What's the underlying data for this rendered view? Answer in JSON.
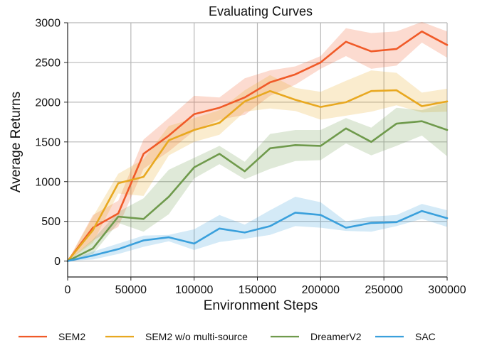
{
  "chart_data": {
    "type": "line",
    "title": "Evaluating Curves",
    "xlabel": "Environment Steps",
    "ylabel": "Average Returns",
    "xlim": [
      0,
      300000
    ],
    "ylim": [
      -200,
      3000
    ],
    "xticks": [
      0,
      50000,
      100000,
      150000,
      200000,
      250000,
      300000
    ],
    "yticks": [
      0,
      500,
      1000,
      1500,
      2000,
      2500,
      3000
    ],
    "grid": true,
    "legend_position": "bottom",
    "series": [
      {
        "name": "SEM2",
        "color": "#f05a28",
        "x": [
          0,
          20000,
          40000,
          60000,
          80000,
          100000,
          120000,
          140000,
          160000,
          180000,
          200000,
          220000,
          240000,
          260000,
          280000,
          300000
        ],
        "y": [
          0,
          420,
          600,
          1350,
          1580,
          1850,
          1930,
          2060,
          2250,
          2350,
          2500,
          2760,
          2640,
          2670,
          2890,
          2720
        ],
        "upper": [
          0,
          580,
          760,
          1530,
          1800,
          2080,
          2060,
          2300,
          2400,
          2450,
          2580,
          2930,
          2870,
          2890,
          3010,
          2890
        ],
        "lower": [
          0,
          260,
          430,
          1160,
          1380,
          1640,
          1780,
          1840,
          2080,
          2220,
          2420,
          2580,
          2420,
          2460,
          2750,
          2560
        ]
      },
      {
        "name": "SEM2 w/o multi-source",
        "color": "#e8a820",
        "x": [
          0,
          20000,
          40000,
          60000,
          80000,
          100000,
          120000,
          140000,
          160000,
          180000,
          200000,
          220000,
          240000,
          260000,
          280000,
          300000
        ],
        "y": [
          0,
          390,
          980,
          1060,
          1520,
          1650,
          1740,
          2010,
          2140,
          2030,
          1940,
          2000,
          2140,
          2150,
          1950,
          2010
        ],
        "upper": [
          0,
          560,
          1100,
          1280,
          1700,
          1800,
          1900,
          2150,
          2340,
          2180,
          2130,
          2270,
          2400,
          2370,
          2120,
          2170
        ],
        "lower": [
          0,
          230,
          850,
          820,
          1330,
          1500,
          1590,
          1880,
          1920,
          1890,
          1780,
          1830,
          1880,
          1960,
          1870,
          1880
        ]
      },
      {
        "name": "DreamerV2",
        "color": "#6f9a4c",
        "x": [
          0,
          20000,
          40000,
          60000,
          80000,
          100000,
          120000,
          140000,
          160000,
          180000,
          200000,
          220000,
          240000,
          260000,
          280000,
          300000
        ],
        "y": [
          0,
          160,
          560,
          530,
          810,
          1180,
          1350,
          1130,
          1420,
          1460,
          1450,
          1670,
          1500,
          1730,
          1760,
          1650
        ],
        "upper": [
          0,
          270,
          620,
          790,
          1150,
          1300,
          1450,
          1250,
          1600,
          1650,
          1650,
          1800,
          1680,
          1930,
          1900,
          2000
        ],
        "lower": [
          0,
          90,
          480,
          370,
          590,
          1040,
          1220,
          1030,
          1160,
          1260,
          1270,
          1480,
          1330,
          1450,
          1580,
          1320
        ]
      },
      {
        "name": "SAC",
        "color": "#3aa0dc",
        "x": [
          0,
          20000,
          40000,
          60000,
          80000,
          100000,
          120000,
          140000,
          160000,
          180000,
          200000,
          220000,
          240000,
          260000,
          280000,
          300000
        ],
        "y": [
          0,
          70,
          150,
          260,
          300,
          220,
          410,
          360,
          440,
          610,
          580,
          420,
          480,
          490,
          630,
          540
        ],
        "upper": [
          0,
          120,
          220,
          320,
          330,
          400,
          580,
          460,
          640,
          810,
          740,
          500,
          560,
          580,
          720,
          640
        ],
        "lower": [
          0,
          20,
          90,
          180,
          250,
          140,
          240,
          280,
          330,
          440,
          420,
          380,
          370,
          440,
          530,
          430
        ]
      }
    ]
  }
}
